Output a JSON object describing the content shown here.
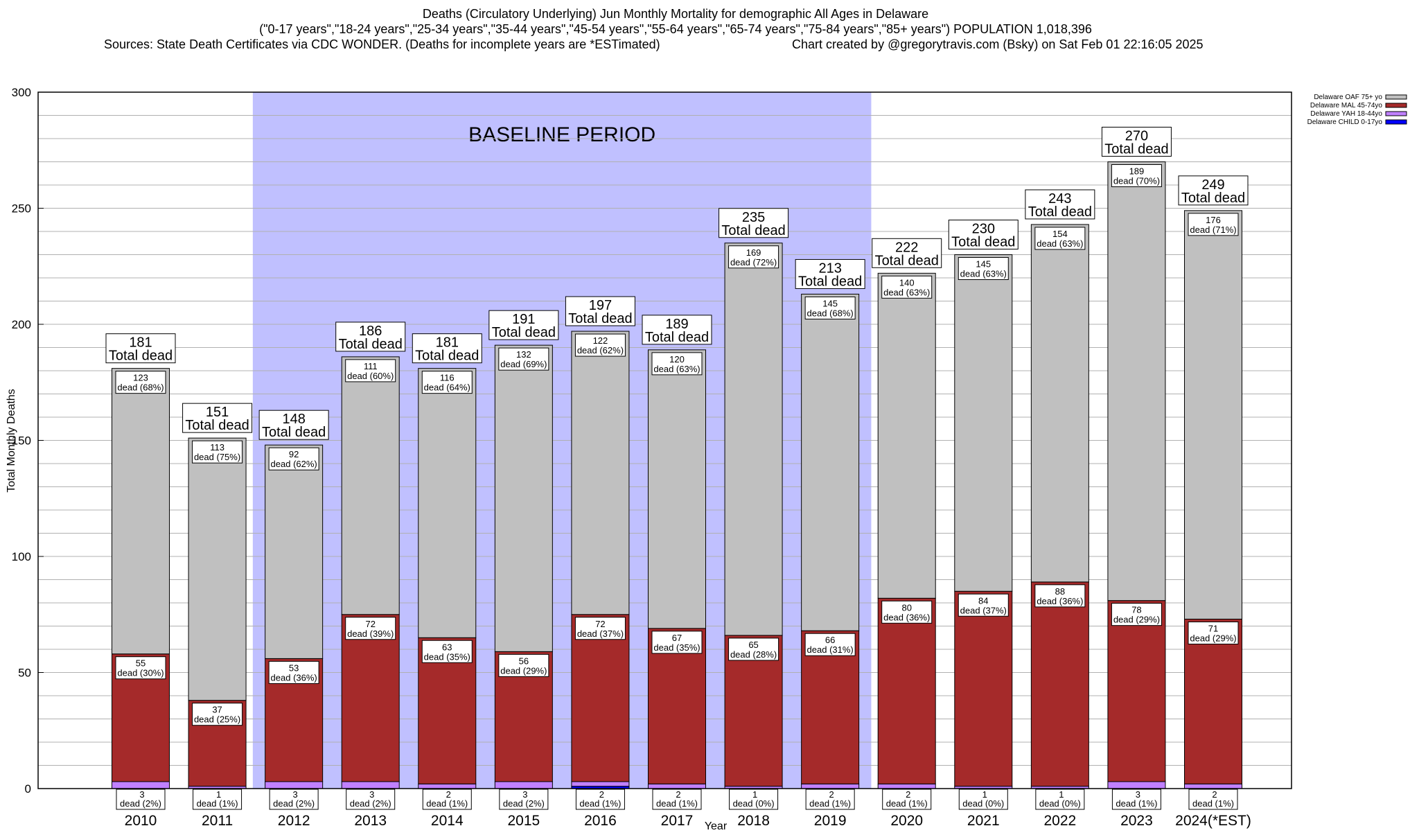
{
  "chart_data": {
    "type": "bar",
    "stacked": true,
    "title": "Deaths (Circulatory Underlying) Jun Monthly Mortality for demographic All Ages in Delaware",
    "subtitle": "(\"0-17 years\",\"18-24 years\",\"25-34 years\",\"35-44 years\",\"45-54 years\",\"55-64 years\",\"65-74 years\",\"75-84 years\",\"85+ years\") POPULATION 1,018,396",
    "sources": "Sources: State Death Certificates via CDC WONDER. (Deaths for incomplete years are *ESTimated)",
    "credit": "Chart created by @gregorytravis.com (Bsky) on Sat Feb 01 22:16:05 2025",
    "xlabel": "Year",
    "ylabel": "Total Monthly Deaths",
    "ylim": [
      0,
      300
    ],
    "yticks": [
      0,
      50,
      100,
      150,
      200,
      250,
      300
    ],
    "grid": true,
    "legend_position": "top-right",
    "annotation": {
      "text": "BASELINE PERIOD",
      "from": "2012",
      "to": "2019",
      "color": "#c0c0ff"
    },
    "categories": [
      "2010",
      "2011",
      "2012",
      "2013",
      "2014",
      "2015",
      "2016",
      "2017",
      "2018",
      "2019",
      "2020",
      "2021",
      "2022",
      "2023",
      "2024(*EST)"
    ],
    "totals": [
      181,
      151,
      148,
      186,
      181,
      191,
      197,
      189,
      235,
      213,
      222,
      230,
      243,
      270,
      249
    ],
    "total_label_suffix": "Total dead",
    "segment_label_word": "dead",
    "series": [
      {
        "name": "Delaware CHILD 0-17yo",
        "color": "#0000ff",
        "values": [
          0,
          0,
          0,
          0,
          0,
          0,
          1,
          0,
          0,
          0,
          0,
          0,
          0,
          0,
          0
        ]
      },
      {
        "name": "Delaware YAH 18-44yo",
        "color": "#c080ff",
        "values": [
          3,
          1,
          3,
          3,
          2,
          3,
          2,
          2,
          1,
          2,
          2,
          1,
          1,
          3,
          2
        ],
        "pct": [
          "2%",
          "1%",
          "2%",
          "2%",
          "1%",
          "2%",
          "1%",
          "1%",
          "0%",
          "1%",
          "1%",
          "0%",
          "0%",
          "1%",
          "1%"
        ]
      },
      {
        "name": "Delaware MAL 45-74yo",
        "color": "#a52a2a",
        "values": [
          55,
          37,
          53,
          72,
          63,
          56,
          72,
          67,
          65,
          66,
          80,
          84,
          88,
          78,
          71
        ],
        "pct": [
          "30%",
          "25%",
          "36%",
          "39%",
          "35%",
          "29%",
          "37%",
          "35%",
          "28%",
          "31%",
          "36%",
          "37%",
          "36%",
          "29%",
          "29%"
        ]
      },
      {
        "name": "Delaware OAF 75+ yo",
        "color": "#c0c0c0",
        "values": [
          123,
          113,
          92,
          111,
          116,
          132,
          122,
          120,
          169,
          145,
          140,
          145,
          154,
          189,
          176
        ],
        "pct": [
          "68%",
          "75%",
          "62%",
          "60%",
          "64%",
          "69%",
          "62%",
          "63%",
          "72%",
          "68%",
          "63%",
          "63%",
          "63%",
          "70%",
          "71%"
        ]
      }
    ]
  }
}
